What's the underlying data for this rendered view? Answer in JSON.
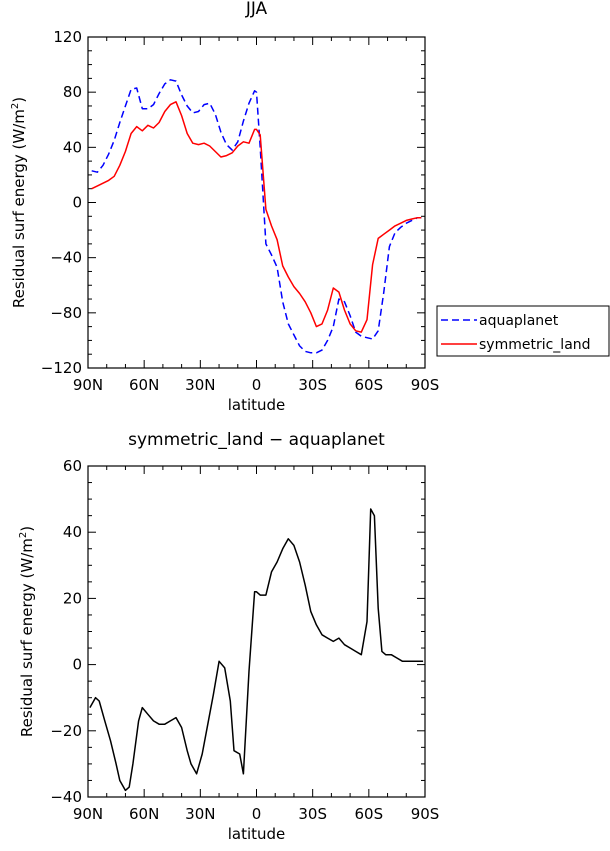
{
  "chart_data": [
    {
      "type": "line",
      "title": "JJA",
      "xlabel": "latitude",
      "ylabel": "Residual surf energy (W/m²)",
      "ylabel_main": "Residual surf energy (W/m",
      "ylabel_sup": "2",
      "ylabel_end": ")",
      "xlim": [
        -90,
        90
      ],
      "ylim": [
        -120,
        120
      ],
      "xticks": [
        -90,
        -60,
        -30,
        0,
        30,
        60,
        90
      ],
      "xtick_labels": [
        "90N",
        "60N",
        "30N",
        "0",
        "30S",
        "60S",
        "90S"
      ],
      "yticks": [
        -120,
        -80,
        -40,
        0,
        40,
        80,
        120
      ],
      "ytick_labels": [
        "−120",
        "−80",
        "−40",
        "0",
        "40",
        "80",
        "120"
      ],
      "legend_position": "right",
      "series": [
        {
          "name": "aquaplanet",
          "color": "#0000ff",
          "dash": "dashed",
          "x": [
            -88,
            -85,
            -82,
            -79,
            -76,
            -73,
            -70,
            -67,
            -64,
            -61,
            -58,
            -55,
            -52,
            -49,
            -46,
            -43,
            -40,
            -37,
            -34,
            -31,
            -28,
            -25,
            -22,
            -19,
            -16,
            -13,
            -10,
            -7,
            -4,
            -1,
            0,
            2,
            5,
            8,
            11,
            14,
            17,
            20,
            23,
            26,
            29,
            32,
            35,
            38,
            41,
            44,
            47,
            50,
            53,
            56,
            59,
            62,
            65,
            68,
            71,
            74,
            77,
            80,
            83,
            86,
            88
          ],
          "y": [
            23,
            22,
            27,
            35,
            45,
            58,
            70,
            82,
            83,
            68,
            68,
            71,
            79,
            86,
            89,
            88,
            78,
            70,
            65,
            66,
            71,
            72,
            64,
            51,
            42,
            38,
            44,
            59,
            72,
            81,
            80,
            40,
            -30,
            -38,
            -47,
            -72,
            -88,
            -96,
            -104,
            -108,
            -109,
            -109,
            -107,
            -100,
            -90,
            -70,
            -72,
            -82,
            -94,
            -97,
            -98,
            -99,
            -93,
            -65,
            -32,
            -22,
            -18,
            -15,
            -13,
            -11,
            -11
          ]
        },
        {
          "name": "symmetric_land",
          "color": "#ff0000",
          "dash": "solid",
          "x": [
            -88,
            -85,
            -82,
            -79,
            -76,
            -73,
            -70,
            -67,
            -64,
            -61,
            -58,
            -55,
            -52,
            -49,
            -46,
            -43,
            -40,
            -37,
            -34,
            -31,
            -28,
            -25,
            -22,
            -19,
            -16,
            -13,
            -10,
            -7,
            -4,
            -1,
            0,
            2,
            5,
            8,
            11,
            14,
            17,
            20,
            23,
            26,
            29,
            32,
            35,
            38,
            41,
            44,
            47,
            50,
            53,
            56,
            59,
            62,
            65,
            68,
            71,
            74,
            77,
            80,
            83,
            86,
            88
          ],
          "y": [
            10,
            12,
            14,
            16,
            19,
            27,
            37,
            50,
            55,
            52,
            56,
            54,
            58,
            66,
            71,
            73,
            63,
            50,
            43,
            42,
            43,
            41,
            37,
            33,
            34,
            36,
            41,
            44,
            43,
            53,
            53,
            49,
            -5,
            -17,
            -27,
            -46,
            -54,
            -61,
            -66,
            -72,
            -80,
            -90,
            -88,
            -78,
            -62,
            -65,
            -78,
            -88,
            -93,
            -94,
            -85,
            -45,
            -26,
            -23,
            -20,
            -17,
            -15,
            -13,
            -12,
            -11,
            -11
          ]
        }
      ]
    },
    {
      "type": "line",
      "title": "symmetric_land − aquaplanet",
      "xlabel": "latitude",
      "ylabel": "Residual surf energy (W/m²)",
      "ylabel_main": "Residual surf energy (W/m",
      "ylabel_sup": "2",
      "ylabel_end": ")",
      "xlim": [
        -90,
        90
      ],
      "ylim": [
        -40,
        60
      ],
      "xticks": [
        -90,
        -60,
        -30,
        0,
        30,
        60,
        90
      ],
      "xtick_labels": [
        "90N",
        "60N",
        "30N",
        "0",
        "30S",
        "60S",
        "90S"
      ],
      "yticks": [
        -40,
        -20,
        0,
        20,
        40,
        60
      ],
      "ytick_labels": [
        "−40",
        "−20",
        "0",
        "20",
        "40",
        "60"
      ],
      "series": [
        {
          "name": "",
          "color": "#000000",
          "dash": "solid",
          "x": [
            -89,
            -86,
            -84,
            -81,
            -78,
            -75,
            -73,
            -70,
            -68,
            -66,
            -63,
            -61,
            -58,
            -55,
            -52,
            -49,
            -46,
            -43,
            -40,
            -37,
            -35,
            -32,
            -29,
            -26,
            -23,
            -20,
            -17,
            -14,
            -12,
            -9,
            -7,
            -4,
            -1,
            0,
            2,
            5,
            8,
            11,
            14,
            17,
            20,
            23,
            26,
            29,
            32,
            35,
            38,
            41,
            44,
            47,
            50,
            53,
            56,
            59,
            61,
            63,
            65,
            67,
            69,
            72,
            75,
            78,
            81,
            84,
            86,
            89
          ],
          "y": [
            -13,
            -10,
            -11,
            -17,
            -23,
            -30,
            -35,
            -38,
            -37,
            -30,
            -17,
            -13,
            -15,
            -17,
            -18,
            -18,
            -17,
            -16,
            -19,
            -26,
            -30,
            -33,
            -27,
            -18,
            -9,
            1,
            -1,
            -11,
            -26,
            -27,
            -33,
            -2,
            22,
            22,
            21,
            21,
            28,
            31,
            35,
            38,
            36,
            31,
            24,
            16,
            12,
            9,
            8,
            7,
            8,
            6,
            5,
            4,
            3,
            13,
            47,
            45,
            17,
            4,
            3,
            3,
            2,
            1,
            1,
            1,
            1,
            1
          ]
        }
      ]
    }
  ]
}
